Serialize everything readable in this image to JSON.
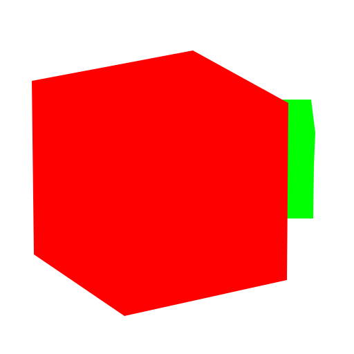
{
  "scene": {
    "background_color": "#ffffff",
    "objects": [
      {
        "name": "green-shape",
        "color": "#00ff00"
      },
      {
        "name": "red-cube",
        "color": "#ff0000"
      }
    ]
  }
}
